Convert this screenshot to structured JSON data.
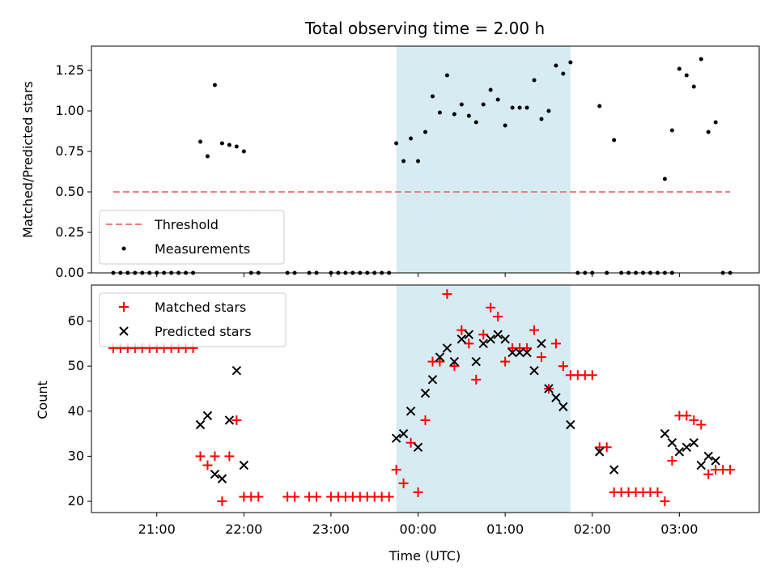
{
  "chart_data": [
    {
      "type": "scatter",
      "title": "Total observing time = 2.00 h",
      "xlabel": "",
      "ylabel": "Matched/Predicted stars",
      "ylim": [
        0,
        1.4
      ],
      "yticks": [
        "0.00",
        "0.25",
        "0.50",
        "0.75",
        "1.00",
        "1.25"
      ],
      "shaded_region_x": [
        "23:45",
        "01:45"
      ],
      "threshold": {
        "name": "Threshold",
        "y": 0.5,
        "x_range": [
          "20:30",
          "03:35"
        ],
        "color": "#f08080"
      },
      "series": [
        {
          "name": "Measurements",
          "color": "#000000",
          "points": [
            [
              "20:30",
              0
            ],
            [
              "20:35",
              0
            ],
            [
              "20:40",
              0
            ],
            [
              "20:45",
              0
            ],
            [
              "20:50",
              0
            ],
            [
              "20:55",
              0
            ],
            [
              "21:00",
              0
            ],
            [
              "21:05",
              0
            ],
            [
              "21:10",
              0
            ],
            [
              "21:15",
              0
            ],
            [
              "21:20",
              0
            ],
            [
              "21:25",
              0
            ],
            [
              "21:30",
              0.81
            ],
            [
              "21:35",
              0.72
            ],
            [
              "21:40",
              1.16
            ],
            [
              "21:45",
              0.8
            ],
            [
              "21:50",
              0.79
            ],
            [
              "21:55",
              0.78
            ],
            [
              "22:00",
              0.75
            ],
            [
              "22:05",
              0
            ],
            [
              "22:10",
              0
            ],
            [
              "22:30",
              0
            ],
            [
              "22:35",
              0
            ],
            [
              "22:45",
              0
            ],
            [
              "22:50",
              0
            ],
            [
              "23:00",
              0
            ],
            [
              "23:05",
              0
            ],
            [
              "23:10",
              0
            ],
            [
              "23:15",
              0
            ],
            [
              "23:20",
              0
            ],
            [
              "23:25",
              0
            ],
            [
              "23:30",
              0
            ],
            [
              "23:35",
              0
            ],
            [
              "23:40",
              0
            ],
            [
              "23:45",
              0.8
            ],
            [
              "23:50",
              0.69
            ],
            [
              "23:55",
              0.83
            ],
            [
              "00:00",
              0.69
            ],
            [
              "00:05",
              0.87
            ],
            [
              "00:10",
              1.09
            ],
            [
              "00:15",
              0.99
            ],
            [
              "00:20",
              1.22
            ],
            [
              "00:25",
              0.98
            ],
            [
              "00:30",
              1.04
            ],
            [
              "00:35",
              0.97
            ],
            [
              "00:40",
              0.93
            ],
            [
              "00:45",
              1.04
            ],
            [
              "00:50",
              1.13
            ],
            [
              "00:55",
              1.07
            ],
            [
              "01:00",
              0.91
            ],
            [
              "01:05",
              1.02
            ],
            [
              "01:10",
              1.02
            ],
            [
              "01:15",
              1.02
            ],
            [
              "01:20",
              1.19
            ],
            [
              "01:25",
              0.95
            ],
            [
              "01:30",
              1.0
            ],
            [
              "01:35",
              1.28
            ],
            [
              "01:40",
              1.23
            ],
            [
              "01:45",
              1.3
            ],
            [
              "01:50",
              0
            ],
            [
              "01:55",
              0
            ],
            [
              "02:00",
              0
            ],
            [
              "02:05",
              1.03
            ],
            [
              "02:10",
              0
            ],
            [
              "02:15",
              0.82
            ],
            [
              "02:20",
              0
            ],
            [
              "02:25",
              0
            ],
            [
              "02:30",
              0
            ],
            [
              "02:35",
              0
            ],
            [
              "02:40",
              0
            ],
            [
              "02:45",
              0
            ],
            [
              "02:50",
              0
            ],
            [
              "02:55",
              0
            ],
            [
              "02:50",
              0.58
            ],
            [
              "02:55",
              0.88
            ],
            [
              "03:00",
              1.26
            ],
            [
              "03:05",
              1.22
            ],
            [
              "03:10",
              1.15
            ],
            [
              "03:15",
              1.32
            ],
            [
              "03:20",
              0.87
            ],
            [
              "03:25",
              0.93
            ],
            [
              "03:30",
              0
            ],
            [
              "03:35",
              0
            ]
          ]
        }
      ],
      "legend": {
        "placement": "lower-left",
        "entries": [
          "Threshold",
          "Measurements"
        ]
      }
    },
    {
      "type": "scatter",
      "title": "",
      "xlabel": "Time (UTC)",
      "ylabel": "Count",
      "ylim": [
        17.5,
        68
      ],
      "yticks": [
        "20",
        "30",
        "40",
        "50",
        "60"
      ],
      "xticks": [
        "21:00",
        "22:00",
        "23:00",
        "00:00",
        "01:00",
        "02:00",
        "03:00"
      ],
      "x_range": [
        "20:15",
        "03:55"
      ],
      "shaded_region_x": [
        "23:45",
        "01:45"
      ],
      "series": [
        {
          "name": "Matched stars",
          "color": "#ff0000",
          "marker": "plus",
          "points": [
            [
              "20:30",
              54
            ],
            [
              "20:35",
              54
            ],
            [
              "20:40",
              54
            ],
            [
              "20:45",
              54
            ],
            [
              "20:50",
              54
            ],
            [
              "20:55",
              54
            ],
            [
              "21:00",
              54
            ],
            [
              "21:05",
              54
            ],
            [
              "21:10",
              54
            ],
            [
              "21:15",
              54
            ],
            [
              "21:20",
              54
            ],
            [
              "21:25",
              54
            ],
            [
              "21:30",
              30
            ],
            [
              "21:35",
              28
            ],
            [
              "21:40",
              30
            ],
            [
              "21:45",
              20
            ],
            [
              "21:50",
              30
            ],
            [
              "21:55",
              38
            ],
            [
              "22:00",
              21
            ],
            [
              "22:05",
              21
            ],
            [
              "22:10",
              21
            ],
            [
              "22:30",
              21
            ],
            [
              "22:35",
              21
            ],
            [
              "22:45",
              21
            ],
            [
              "22:50",
              21
            ],
            [
              "23:00",
              21
            ],
            [
              "23:05",
              21
            ],
            [
              "23:10",
              21
            ],
            [
              "23:15",
              21
            ],
            [
              "23:20",
              21
            ],
            [
              "23:25",
              21
            ],
            [
              "23:30",
              21
            ],
            [
              "23:35",
              21
            ],
            [
              "23:40",
              21
            ],
            [
              "23:45",
              27
            ],
            [
              "23:50",
              24
            ],
            [
              "23:55",
              33
            ],
            [
              "00:00",
              22
            ],
            [
              "00:05",
              38
            ],
            [
              "00:10",
              51
            ],
            [
              "00:15",
              51
            ],
            [
              "00:20",
              66
            ],
            [
              "00:25",
              50
            ],
            [
              "00:30",
              58
            ],
            [
              "00:35",
              55
            ],
            [
              "00:40",
              47
            ],
            [
              "00:45",
              57
            ],
            [
              "00:50",
              63
            ],
            [
              "00:55",
              61
            ],
            [
              "01:00",
              51
            ],
            [
              "01:05",
              54
            ],
            [
              "01:10",
              54
            ],
            [
              "01:15",
              54
            ],
            [
              "01:20",
              58
            ],
            [
              "01:25",
              52
            ],
            [
              "01:30",
              45
            ],
            [
              "01:35",
              55
            ],
            [
              "01:40",
              50
            ],
            [
              "01:45",
              48
            ],
            [
              "01:50",
              48
            ],
            [
              "01:55",
              48
            ],
            [
              "02:00",
              48
            ],
            [
              "02:05",
              32
            ],
            [
              "02:10",
              32
            ],
            [
              "02:15",
              22
            ],
            [
              "02:20",
              22
            ],
            [
              "02:25",
              22
            ],
            [
              "02:30",
              22
            ],
            [
              "02:35",
              22
            ],
            [
              "02:40",
              22
            ],
            [
              "02:45",
              22
            ],
            [
              "02:50",
              20
            ],
            [
              "02:55",
              29
            ],
            [
              "03:00",
              39
            ],
            [
              "03:05",
              39
            ],
            [
              "03:10",
              38
            ],
            [
              "03:15",
              37
            ],
            [
              "03:20",
              26
            ],
            [
              "03:25",
              27
            ],
            [
              "03:30",
              27
            ],
            [
              "03:35",
              27
            ]
          ]
        },
        {
          "name": "Predicted stars",
          "color": "#000000",
          "marker": "x",
          "points": [
            [
              "21:30",
              37
            ],
            [
              "21:35",
              39
            ],
            [
              "21:40",
              26
            ],
            [
              "21:45",
              25
            ],
            [
              "21:50",
              38
            ],
            [
              "21:55",
              49
            ],
            [
              "22:00",
              28
            ],
            [
              "23:45",
              34
            ],
            [
              "23:50",
              35
            ],
            [
              "23:55",
              40
            ],
            [
              "00:00",
              32
            ],
            [
              "00:05",
              44
            ],
            [
              "00:10",
              47
            ],
            [
              "00:15",
              52
            ],
            [
              "00:20",
              54
            ],
            [
              "00:25",
              51
            ],
            [
              "00:30",
              56
            ],
            [
              "00:35",
              57
            ],
            [
              "00:40",
              51
            ],
            [
              "00:45",
              55
            ],
            [
              "00:50",
              56
            ],
            [
              "00:55",
              57
            ],
            [
              "01:00",
              56
            ],
            [
              "01:05",
              53
            ],
            [
              "01:10",
              53
            ],
            [
              "01:15",
              53
            ],
            [
              "01:20",
              49
            ],
            [
              "01:25",
              55
            ],
            [
              "01:30",
              45
            ],
            [
              "01:35",
              43
            ],
            [
              "01:40",
              41
            ],
            [
              "01:45",
              37
            ],
            [
              "02:05",
              31
            ],
            [
              "02:15",
              27
            ],
            [
              "02:50",
              35
            ],
            [
              "02:55",
              33
            ],
            [
              "03:00",
              31
            ],
            [
              "03:05",
              32
            ],
            [
              "03:10",
              33
            ],
            [
              "03:15",
              28
            ],
            [
              "03:20",
              30
            ],
            [
              "03:25",
              29
            ]
          ]
        }
      ],
      "legend": {
        "placement": "upper-left",
        "entries": [
          "Matched stars",
          "Predicted stars"
        ]
      }
    }
  ]
}
